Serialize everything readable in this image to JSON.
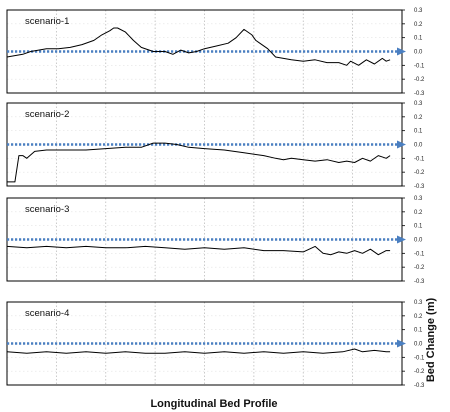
{
  "chart_data": {
    "type": "line",
    "xlabel": "Longitudinal Bed Profile",
    "ylabel": "Bed Change (m)",
    "ylim": [
      -0.3,
      0.3
    ],
    "yticks": [
      "0.3",
      "0.2",
      "0.1",
      "0.0",
      "-0.1",
      "-0.2",
      "-0.3"
    ],
    "xlim": [
      0,
      1
    ],
    "grid": true,
    "colors": {
      "profile_line": "#000000",
      "reference_line": "#4a7fc1",
      "grid": "#bdbdbd",
      "frame": "#000000"
    },
    "panels": [
      {
        "name": "scenario-1",
        "x": [
          0,
          0.02,
          0.04,
          0.06,
          0.08,
          0.1,
          0.13,
          0.16,
          0.19,
          0.22,
          0.24,
          0.26,
          0.27,
          0.28,
          0.3,
          0.32,
          0.34,
          0.37,
          0.4,
          0.42,
          0.44,
          0.46,
          0.48,
          0.5,
          0.53,
          0.56,
          0.58,
          0.6,
          0.62,
          0.63,
          0.64,
          0.66,
          0.68,
          0.7,
          0.72,
          0.75,
          0.78,
          0.81,
          0.84,
          0.86,
          0.87,
          0.89,
          0.91,
          0.93,
          0.95,
          0.96,
          0.97
        ],
        "y": [
          -0.04,
          -0.03,
          -0.02,
          0.0,
          0.01,
          0.02,
          0.02,
          0.03,
          0.05,
          0.08,
          0.12,
          0.15,
          0.17,
          0.17,
          0.14,
          0.08,
          0.03,
          0.0,
          0.0,
          -0.02,
          0.01,
          -0.01,
          0.0,
          0.02,
          0.04,
          0.06,
          0.1,
          0.16,
          0.12,
          0.08,
          0.06,
          0.02,
          -0.04,
          -0.05,
          -0.06,
          -0.07,
          -0.06,
          -0.08,
          -0.08,
          -0.1,
          -0.07,
          -0.1,
          -0.06,
          -0.09,
          -0.05,
          -0.07,
          -0.06
        ]
      },
      {
        "name": "scenario-2",
        "x": [
          0,
          0.01,
          0.02,
          0.03,
          0.04,
          0.05,
          0.07,
          0.1,
          0.15,
          0.2,
          0.25,
          0.3,
          0.34,
          0.37,
          0.4,
          0.43,
          0.46,
          0.5,
          0.55,
          0.6,
          0.65,
          0.68,
          0.7,
          0.72,
          0.75,
          0.78,
          0.81,
          0.84,
          0.86,
          0.88,
          0.9,
          0.92,
          0.94,
          0.96,
          0.97
        ],
        "y": [
          -0.27,
          -0.27,
          -0.27,
          -0.08,
          -0.08,
          -0.1,
          -0.05,
          -0.04,
          -0.04,
          -0.04,
          -0.03,
          -0.02,
          -0.02,
          0.01,
          0.01,
          0.0,
          -0.02,
          -0.03,
          -0.04,
          -0.06,
          -0.08,
          -0.1,
          -0.11,
          -0.1,
          -0.11,
          -0.12,
          -0.11,
          -0.13,
          -0.12,
          -0.13,
          -0.1,
          -0.12,
          -0.08,
          -0.1,
          -0.08
        ]
      },
      {
        "name": "scenario-3",
        "x": [
          0,
          0.05,
          0.1,
          0.15,
          0.2,
          0.25,
          0.3,
          0.35,
          0.4,
          0.45,
          0.5,
          0.55,
          0.6,
          0.65,
          0.7,
          0.75,
          0.78,
          0.8,
          0.82,
          0.84,
          0.86,
          0.88,
          0.9,
          0.92,
          0.94,
          0.96,
          0.97
        ],
        "y": [
          -0.05,
          -0.06,
          -0.05,
          -0.06,
          -0.05,
          -0.06,
          -0.06,
          -0.05,
          -0.06,
          -0.07,
          -0.06,
          -0.07,
          -0.06,
          -0.08,
          -0.08,
          -0.09,
          -0.05,
          -0.1,
          -0.11,
          -0.09,
          -0.1,
          -0.08,
          -0.1,
          -0.07,
          -0.11,
          -0.08,
          -0.08
        ]
      },
      {
        "name": "scenario-4",
        "x": [
          0,
          0.05,
          0.1,
          0.15,
          0.2,
          0.25,
          0.3,
          0.35,
          0.4,
          0.45,
          0.5,
          0.55,
          0.6,
          0.65,
          0.7,
          0.75,
          0.8,
          0.85,
          0.88,
          0.9,
          0.93,
          0.96,
          0.97
        ],
        "y": [
          -0.06,
          -0.07,
          -0.06,
          -0.07,
          -0.06,
          -0.07,
          -0.06,
          -0.07,
          -0.07,
          -0.06,
          -0.07,
          -0.06,
          -0.07,
          -0.06,
          -0.07,
          -0.06,
          -0.07,
          -0.06,
          -0.04,
          -0.06,
          -0.05,
          -0.06,
          -0.06
        ]
      }
    ]
  }
}
